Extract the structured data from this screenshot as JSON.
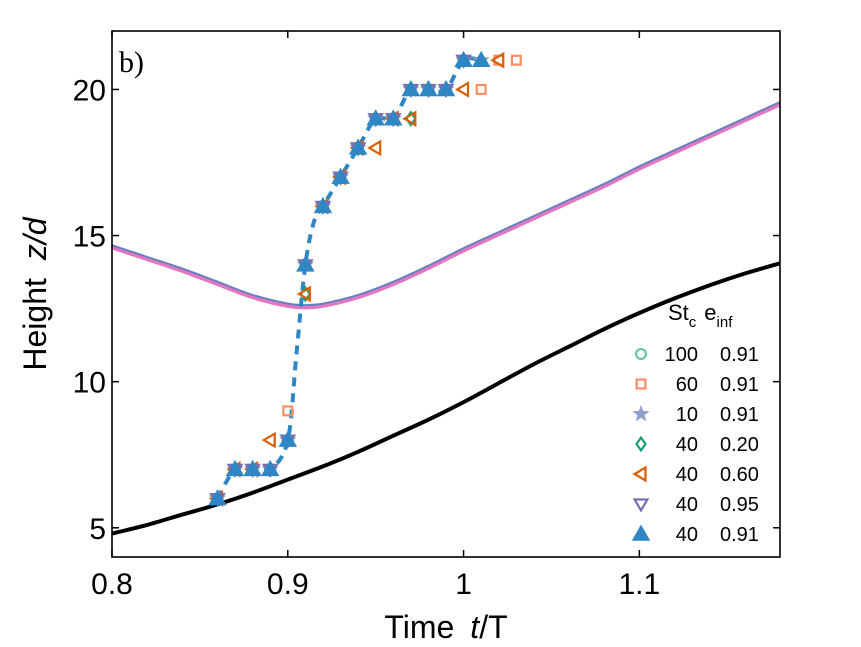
{
  "chart_data": {
    "type": "line",
    "panel_label": "b)",
    "xlabel_word": "Time",
    "xlabel_var": "t",
    "xlabel_unit": "/T",
    "ylabel_word": "Height",
    "ylabel_var": "z/d",
    "xlim": [
      0.8,
      1.18
    ],
    "ylim": [
      4,
      22
    ],
    "x_ticks": [
      0.8,
      0.9,
      1.0,
      1.1
    ],
    "x_tick_labels": [
      "0.8",
      "0.9",
      "1",
      "1.1"
    ],
    "y_ticks": [
      5,
      10,
      15,
      20
    ],
    "y_tick_labels": [
      "5",
      "10",
      "15",
      "20"
    ],
    "colors": {
      "black_curve": "#000000",
      "upper_curve_pink": "#e377c2",
      "upper_curve_blue": "#6a7fbf",
      "dashed": "#2f86c4",
      "c100": "#66c2a5",
      "c60": "#fc8d62",
      "c10": "#8da0cb",
      "c40_020": "#1b9e77",
      "c40_060": "#d95f02",
      "c40_095": "#7570b3",
      "c40_091": "#2f86c4"
    },
    "lines": [
      {
        "name": "lower-curve",
        "x": [
          0.8,
          0.82,
          0.84,
          0.86,
          0.88,
          0.9,
          0.92,
          0.94,
          0.96,
          0.98,
          1.0,
          1.02,
          1.04,
          1.06,
          1.08,
          1.1,
          1.12,
          1.14,
          1.16,
          1.18
        ],
        "y": [
          4.8,
          5.1,
          5.45,
          5.8,
          6.2,
          6.65,
          7.1,
          7.6,
          8.15,
          8.7,
          9.3,
          9.95,
          10.6,
          11.2,
          11.8,
          12.35,
          12.85,
          13.3,
          13.7,
          14.05
        ]
      },
      {
        "name": "upper-curve",
        "x": [
          0.8,
          0.82,
          0.84,
          0.86,
          0.88,
          0.9,
          0.91,
          0.92,
          0.94,
          0.96,
          0.98,
          1.0,
          1.02,
          1.04,
          1.06,
          1.08,
          1.1,
          1.12,
          1.14,
          1.16,
          1.18
        ],
        "y": [
          14.6,
          14.2,
          13.8,
          13.35,
          12.9,
          12.6,
          12.55,
          12.6,
          12.9,
          13.35,
          13.9,
          14.5,
          15.05,
          15.6,
          16.15,
          16.7,
          17.3,
          17.85,
          18.4,
          18.95,
          19.5
        ]
      }
    ],
    "dashed_trend": {
      "x": [
        0.86,
        0.87,
        0.88,
        0.89,
        0.9,
        0.905,
        0.91,
        0.915,
        0.92,
        0.93,
        0.94,
        0.95,
        0.96,
        0.97,
        0.98,
        0.99,
        1.0,
        1.01
      ],
      "y": [
        6,
        7,
        7,
        7,
        8,
        11,
        14,
        15.5,
        16,
        17,
        18,
        19,
        19,
        20,
        20,
        20,
        21,
        21
      ]
    },
    "legend_header_st": "St",
    "legend_header_st_sub": "c",
    "legend_header_e": "e",
    "legend_header_e_sub": "inf",
    "legend_position": "lower-right",
    "series": [
      {
        "name": "100 0.91",
        "st": "100",
        "e": "0.91",
        "marker": "circle",
        "color_key": "c100",
        "x": [
          0.86,
          0.87,
          0.88,
          0.89,
          0.9,
          0.91,
          0.92,
          0.93,
          0.94,
          0.95,
          0.96,
          0.97,
          0.98,
          0.99,
          1.0
        ],
        "y": [
          6,
          7,
          7,
          7,
          8,
          14,
          16,
          17,
          18,
          19,
          19,
          20,
          20,
          20,
          21
        ]
      },
      {
        "name": "60 0.91",
        "st": "60",
        "e": "0.91",
        "marker": "square",
        "color_key": "c60",
        "x": [
          0.86,
          0.87,
          0.88,
          0.89,
          0.9,
          0.91,
          0.92,
          0.93,
          0.94,
          0.95,
          0.96,
          0.97,
          0.98,
          0.99,
          1.01,
          1.02,
          1.03
        ],
        "y": [
          6,
          7,
          7,
          7,
          9,
          14,
          16,
          17,
          18,
          19,
          19,
          20,
          20,
          20,
          20,
          21,
          21
        ]
      },
      {
        "name": "10 0.91",
        "st": "10",
        "e": "0.91",
        "marker": "star",
        "color_key": "c10",
        "x": [
          0.86,
          0.87,
          0.88,
          0.89,
          0.9,
          0.91,
          0.92,
          0.93,
          0.94,
          0.95,
          0.96,
          0.97,
          0.98,
          0.99,
          1.0,
          1.01
        ],
        "y": [
          6,
          7,
          7,
          7,
          8,
          14,
          16,
          17,
          18,
          19,
          19,
          20,
          20,
          20,
          21,
          21
        ]
      },
      {
        "name": "40 0.20",
        "st": "40",
        "e": "0.20",
        "marker": "diamond",
        "color_key": "c40_020",
        "x": [
          0.86,
          0.87,
          0.88,
          0.89,
          0.9,
          0.91,
          0.92,
          0.93,
          0.94,
          0.95,
          0.97,
          0.98,
          0.99,
          1.0
        ],
        "y": [
          6,
          7,
          7,
          7,
          8,
          13,
          16,
          17,
          18,
          19,
          19,
          20,
          20,
          21
        ]
      },
      {
        "name": "40 0.60",
        "st": "40",
        "e": "0.60",
        "marker": "triangle-left",
        "color_key": "c40_060",
        "x": [
          0.86,
          0.87,
          0.88,
          0.89,
          0.91,
          0.92,
          0.93,
          0.94,
          0.95,
          0.96,
          0.97,
          1.0,
          1.02
        ],
        "y": [
          6,
          7,
          7,
          8,
          13,
          16,
          17,
          18,
          18,
          19,
          19,
          20,
          21
        ]
      },
      {
        "name": "40 0.95",
        "st": "40",
        "e": "0.95",
        "marker": "triangle-down",
        "color_key": "c40_095",
        "x": [
          0.86,
          0.87,
          0.88,
          0.89,
          0.9,
          0.91,
          0.92,
          0.93,
          0.94,
          0.95,
          0.96,
          0.97,
          0.98,
          0.99,
          1.0
        ],
        "y": [
          6,
          7,
          7,
          7,
          8,
          14,
          16,
          17,
          18,
          19,
          19,
          20,
          20,
          20,
          21
        ]
      },
      {
        "name": "40 0.91",
        "st": "40",
        "e": "0.91",
        "marker": "triangle-up-filled",
        "color_key": "c40_091",
        "x": [
          0.86,
          0.87,
          0.88,
          0.89,
          0.9,
          0.91,
          0.92,
          0.93,
          0.94,
          0.95,
          0.96,
          0.97,
          0.98,
          0.99,
          1.0,
          1.01
        ],
        "y": [
          6,
          7,
          7,
          7,
          8,
          14,
          16,
          17,
          18,
          19,
          19,
          20,
          20,
          20,
          21,
          21
        ]
      }
    ]
  }
}
